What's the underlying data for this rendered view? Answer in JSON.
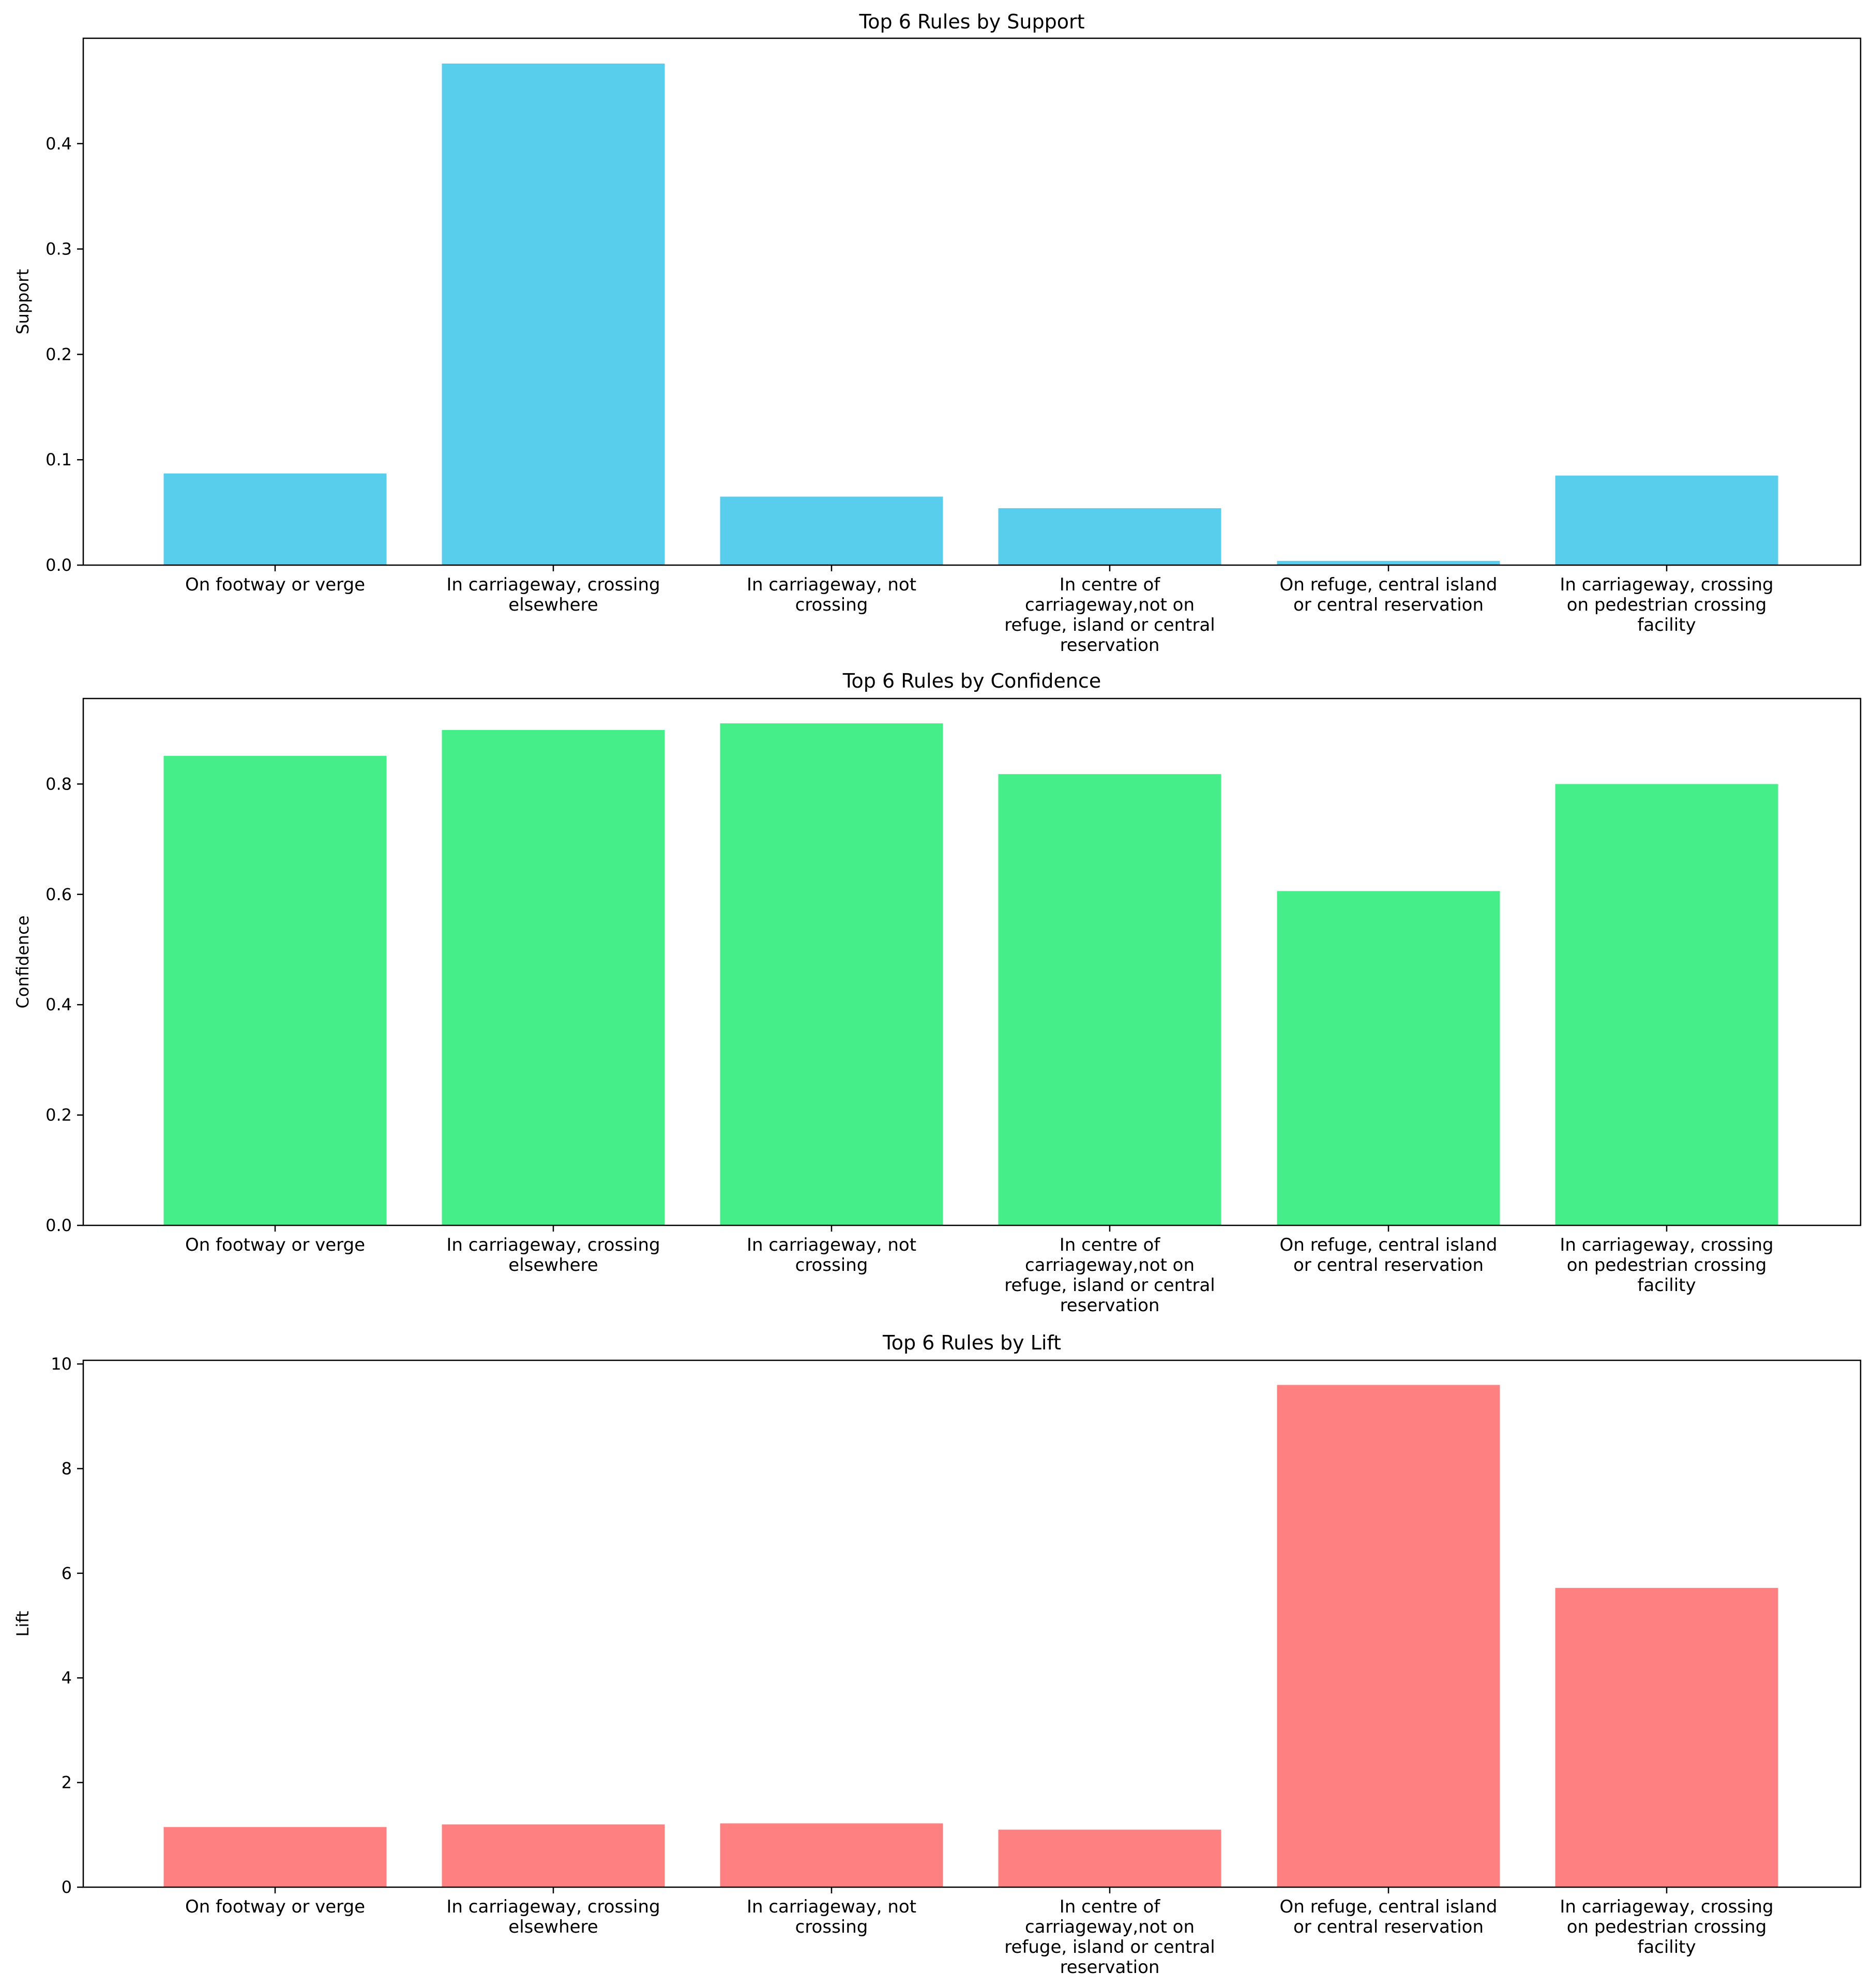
{
  "chart_data": [
    {
      "type": "bar",
      "title": "Top 6 Rules by Support",
      "xlabel": "",
      "ylabel": "Support",
      "color": "#59cdec",
      "ylim": [
        0,
        0.5
      ],
      "yticks": [
        0.0,
        0.1,
        0.2,
        0.3,
        0.4
      ],
      "ytick_labels": [
        "0.0",
        "0.1",
        "0.2",
        "0.3",
        "0.4"
      ],
      "categories": [
        [
          "On footway or verge"
        ],
        [
          "In carriageway, crossing",
          "elsewhere"
        ],
        [
          "In carriageway, not",
          "crossing"
        ],
        [
          "In centre of",
          "carriageway,not on",
          "refuge, island or central",
          "reservation"
        ],
        [
          "On refuge, central island",
          "or central reservation"
        ],
        [
          "In carriageway, crossing",
          "on pedestrian crossing",
          "facility"
        ]
      ],
      "values": [
        0.087,
        0.476,
        0.065,
        0.054,
        0.004,
        0.085
      ]
    },
    {
      "type": "bar",
      "title": "Top 6 Rules by Confidence",
      "xlabel": "",
      "ylabel": "Confidence",
      "color": "#46ee8a",
      "ylim": [
        0,
        0.955
      ],
      "yticks": [
        0.0,
        0.2,
        0.4,
        0.6,
        0.8
      ],
      "ytick_labels": [
        "0.0",
        "0.2",
        "0.4",
        "0.6",
        "0.8"
      ],
      "categories": [
        [
          "On footway or verge"
        ],
        [
          "In carriageway, crossing",
          "elsewhere"
        ],
        [
          "In carriageway, not",
          "crossing"
        ],
        [
          "In centre of",
          "carriageway,not on",
          "refuge, island or central",
          "reservation"
        ],
        [
          "On refuge, central island",
          "or central reservation"
        ],
        [
          "In carriageway, crossing",
          "on pedestrian crossing",
          "facility"
        ]
      ],
      "values": [
        0.851,
        0.898,
        0.91,
        0.818,
        0.606,
        0.8
      ]
    },
    {
      "type": "bar",
      "title": "Top 6 Rules by Lift",
      "xlabel": "",
      "ylabel": "Lift",
      "color": "#ff8080",
      "ylim": [
        0,
        10.07
      ],
      "yticks": [
        0,
        2,
        4,
        6,
        8,
        10
      ],
      "ytick_labels": [
        "0",
        "2",
        "4",
        "6",
        "8",
        "10"
      ],
      "categories": [
        [
          "On footway or verge"
        ],
        [
          "In carriageway, crossing",
          "elsewhere"
        ],
        [
          "In carriageway, not",
          "crossing"
        ],
        [
          "In centre of",
          "carriageway,not on",
          "refuge, island or central",
          "reservation"
        ],
        [
          "On refuge, central island",
          "or central reservation"
        ],
        [
          "In carriageway, crossing",
          "on pedestrian crossing",
          "facility"
        ]
      ],
      "values": [
        1.15,
        1.2,
        1.22,
        1.1,
        9.6,
        5.72
      ]
    }
  ]
}
